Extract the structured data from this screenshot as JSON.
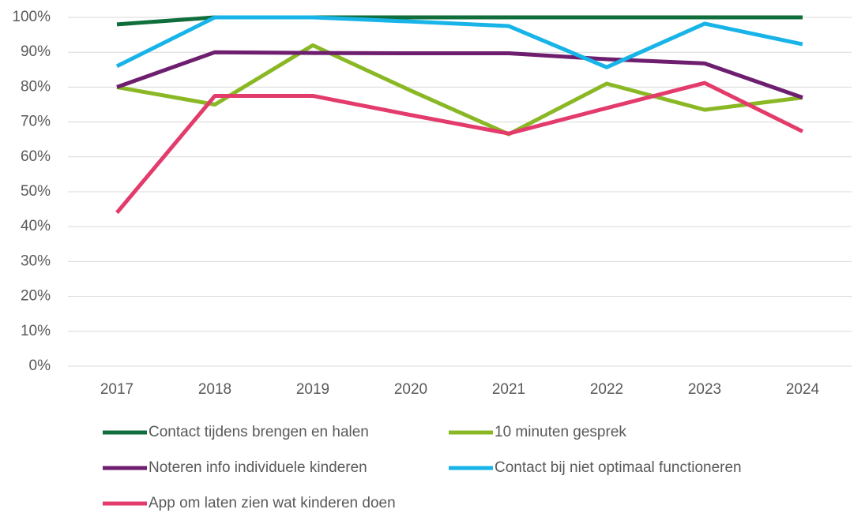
{
  "chart_data": {
    "type": "line",
    "categories": [
      "2017",
      "2018",
      "2019",
      "2020",
      "2021",
      "2022",
      "2023",
      "2024"
    ],
    "series": [
      {
        "name": "Contact tijdens brengen en halen",
        "color": "#0f6e3c",
        "values": [
          98,
          100,
          100,
          100,
          100,
          100,
          100,
          100
        ]
      },
      {
        "name": "10 minuten gesprek",
        "color": "#8ab825",
        "values": [
          80,
          75,
          92,
          79,
          66.5,
          81,
          73.5,
          77
        ]
      },
      {
        "name": "Noteren info individuele kinderen",
        "color": "#6e1e6e",
        "values": [
          80,
          90,
          89.8,
          89.7,
          89.7,
          88,
          86.8,
          77
        ]
      },
      {
        "name": "Contact bij niet optimaal functioneren",
        "color": "#18b4e8",
        "values": [
          86,
          100,
          100,
          98.8,
          97.5,
          85.7,
          98.2,
          92.3
        ]
      },
      {
        "name": "App om laten zien wat kinderen doen",
        "color": "#e33b6b",
        "values": [
          44,
          77.5,
          77.5,
          72,
          66.7,
          74,
          81.2,
          67.3
        ]
      }
    ],
    "ylim": [
      0,
      100
    ],
    "yticks": [
      {
        "value": 0,
        "label": "0%"
      },
      {
        "value": 10,
        "label": "10%"
      },
      {
        "value": 20,
        "label": "20%"
      },
      {
        "value": 30,
        "label": "30%"
      },
      {
        "value": 40,
        "label": "40%"
      },
      {
        "value": 50,
        "label": "50%"
      },
      {
        "value": 60,
        "label": "60%"
      },
      {
        "value": 70,
        "label": "70%"
      },
      {
        "value": 80,
        "label": "80%"
      },
      {
        "value": 90,
        "label": "90%"
      },
      {
        "value": 100,
        "label": "100%"
      }
    ],
    "grid": true,
    "legend": "bottom"
  }
}
